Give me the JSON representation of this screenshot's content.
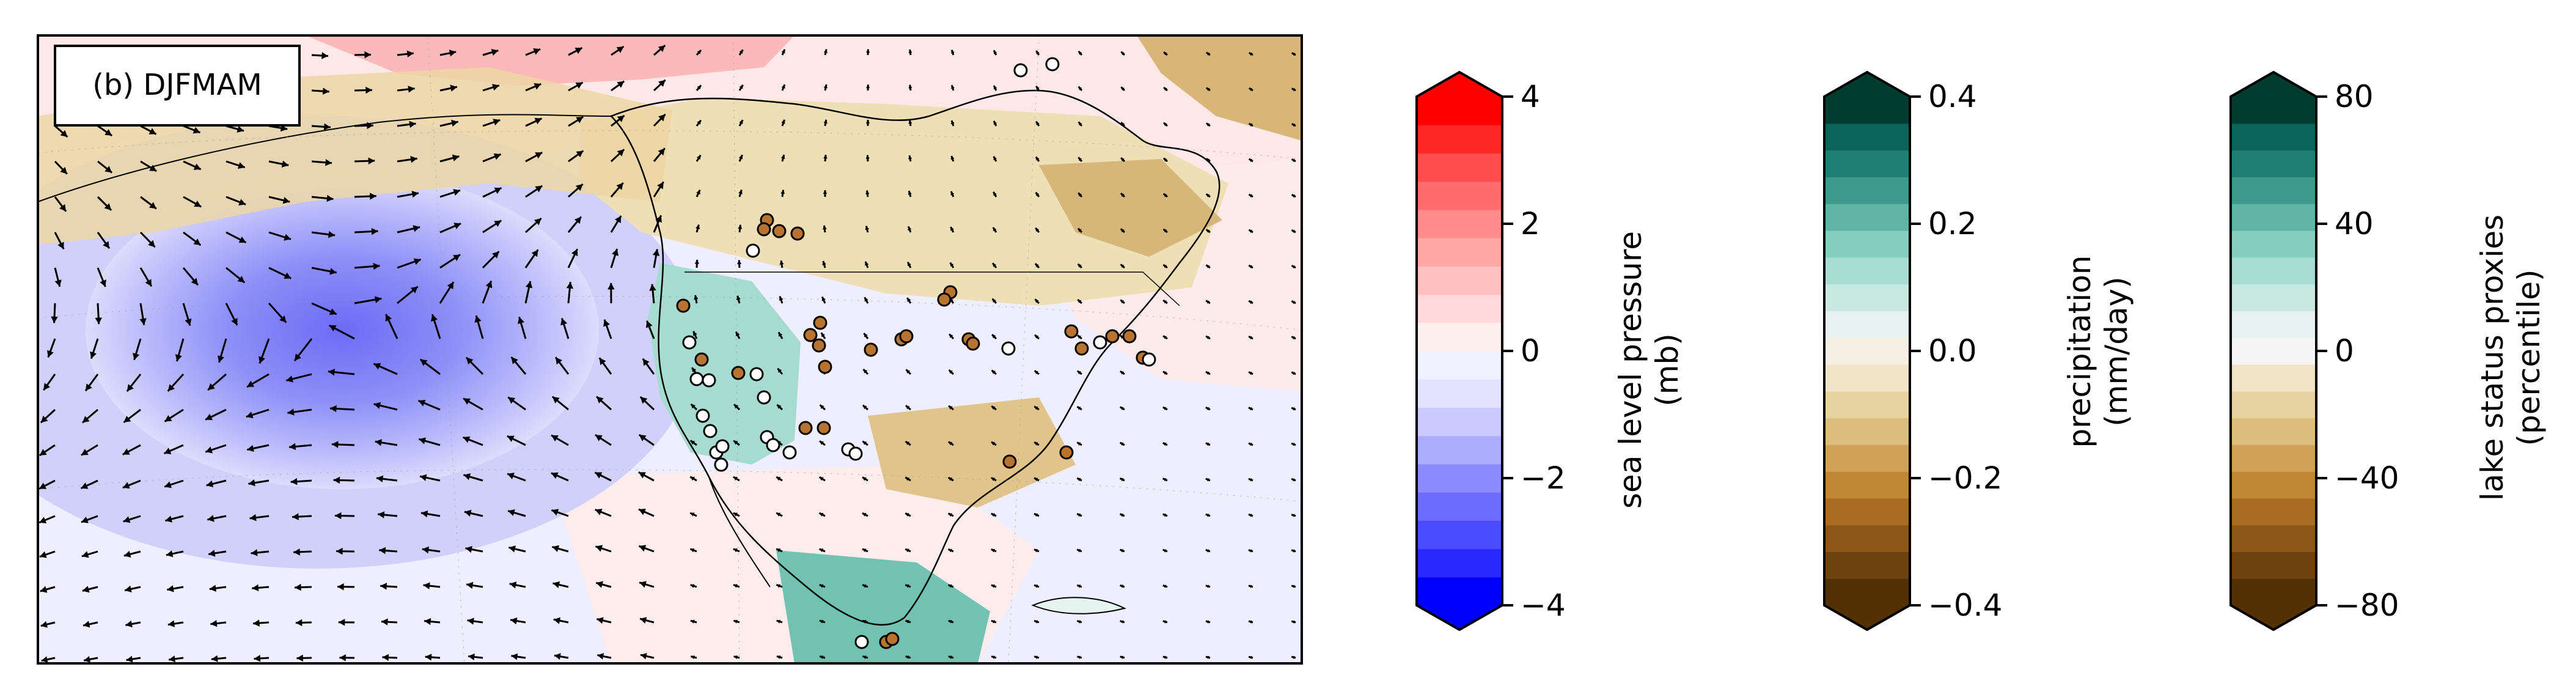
{
  "chart_data": [
    {
      "type": "map",
      "panel_label": "(b) DJFMAM",
      "colors": {
        "negative_anomaly": "#6b6cf5",
        "positive_anomaly": "#f5b5b5",
        "wet": "#6fbfac",
        "dry": "#d4ad63",
        "frame": "#000000",
        "arrow": "#000000"
      },
      "markers": {
        "filled_color": "#b8742f",
        "open_color": "#ffffff"
      }
    },
    {
      "type": "colorbar",
      "label": [
        "sea level pressure",
        "(mb)"
      ],
      "ticks": [
        "4",
        "2",
        "0",
        "−2",
        "−4"
      ],
      "range": [
        -4,
        4
      ],
      "extend": "both",
      "levels": [
        "#0000ff",
        "#2929ff",
        "#4a4aff",
        "#6b6bff",
        "#8c8cff",
        "#adadff",
        "#c9c9ff",
        "#e3e3ff",
        "#f1f1ff",
        "#fff0f0",
        "#ffd9d9",
        "#ffc0c0",
        "#ffa6a6",
        "#ff8c8c",
        "#ff6d6d",
        "#ff4d4d",
        "#ff2727",
        "#ff0000"
      ]
    },
    {
      "type": "colorbar",
      "label": [
        "precipitation",
        "(mm/day)"
      ],
      "ticks": [
        "0.4",
        "0.2",
        "0.0",
        "−0.2",
        "−0.4"
      ],
      "range": [
        -0.4,
        0.4
      ],
      "extend": "both",
      "levels": [
        "#543005",
        "#6d420c",
        "#8c5616",
        "#a86d22",
        "#bf8636",
        "#cfa258",
        "#dcbd7e",
        "#e7d2a2",
        "#f1e4c6",
        "#f6efe3",
        "#e6f2ef",
        "#c9e8e2",
        "#a8ddd3",
        "#85cdbf",
        "#60b5a6",
        "#3e9a8d",
        "#207f74",
        "#0b635a",
        "#003c30"
      ]
    },
    {
      "type": "colorbar",
      "label": [
        "lake status proxies",
        "(percentile)"
      ],
      "ticks": [
        "80",
        "40",
        "0",
        "−40",
        "−80"
      ],
      "range": [
        -80,
        80
      ],
      "extend": "both",
      "levels": [
        "#543005",
        "#6d420c",
        "#8c5616",
        "#a86d22",
        "#bf8636",
        "#cfa258",
        "#dcbd7e",
        "#e7d2a2",
        "#f1e4c6",
        "#f5f5f5",
        "#e6f2ef",
        "#c9e8e2",
        "#a8ddd3",
        "#85cdbf",
        "#60b5a6",
        "#3e9a8d",
        "#207f74",
        "#0b635a",
        "#003c30"
      ]
    }
  ]
}
